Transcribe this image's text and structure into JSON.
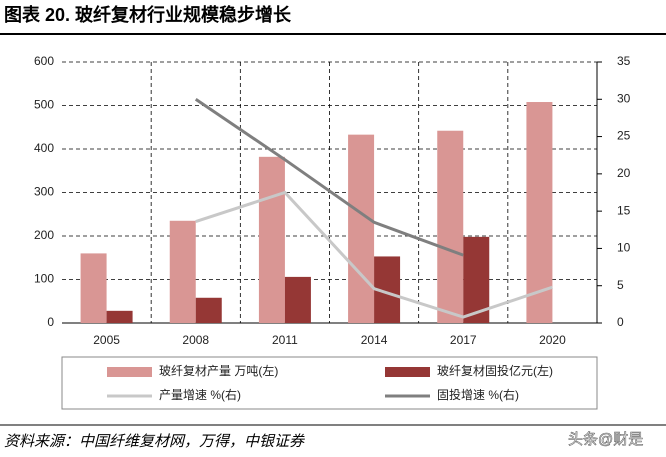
{
  "chart_data": {
    "type": "bar-line",
    "title": "图表 20. 玻纤复材行业规模稳步增长",
    "categories": [
      "2005",
      "2008",
      "2011",
      "2014",
      "2017",
      "2020"
    ],
    "series": [
      {
        "name": "玻纤复材产量 万吨(左)",
        "type": "bar",
        "color": "#d99694",
        "values": [
          160,
          235,
          382,
          433,
          442,
          508
        ]
      },
      {
        "name": "玻纤复材固投亿元(左)",
        "type": "bar",
        "color": "#953735",
        "values": [
          28,
          58,
          106,
          153,
          198,
          null
        ]
      },
      {
        "name": "产量增速 %(右)",
        "type": "line",
        "axis": "y2",
        "color": "#c8c8c8",
        "values": [
          null,
          13.6,
          17.5,
          4.6,
          0.8,
          4.8
        ]
      },
      {
        "name": "固投增速 %(右)",
        "type": "line",
        "axis": "y2",
        "color": "#7f7f7f",
        "values": [
          null,
          30.0,
          21.9,
          13.5,
          9.1,
          null
        ]
      }
    ],
    "ylim": [
      0,
      600
    ],
    "yticks": [
      0,
      100,
      200,
      300,
      400,
      500,
      600
    ],
    "y2lim": [
      0,
      35
    ],
    "y2ticks": [
      0,
      5,
      10,
      15,
      20,
      25,
      30,
      35
    ],
    "grid": true,
    "source": "资料来源：中国纤维复材网，万得，中银证券",
    "watermark": "头条@财是"
  }
}
